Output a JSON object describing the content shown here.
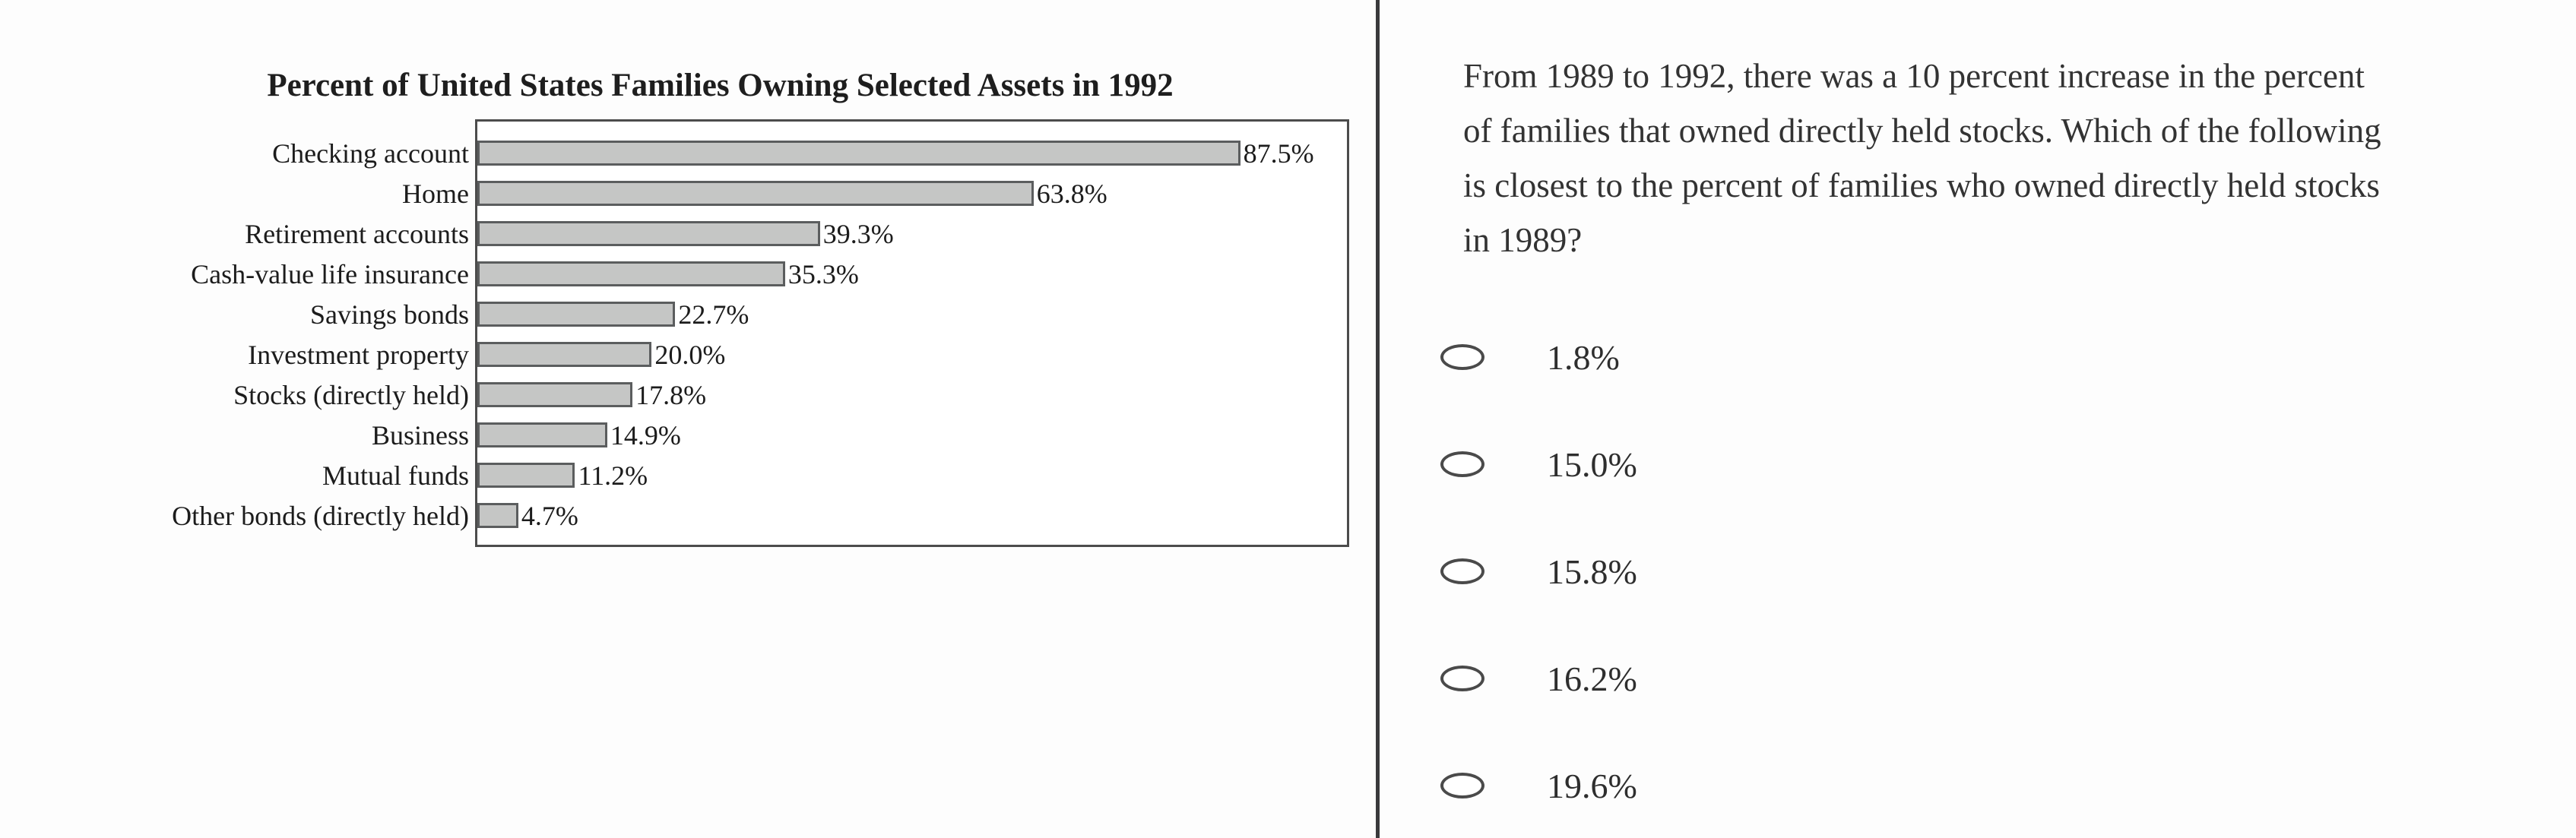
{
  "chart_data": {
    "type": "bar",
    "orientation": "horizontal",
    "title": "Percent of United States Families Owning Selected Assets in 1992",
    "categories": [
      "Checking account",
      "Home",
      "Retirement accounts",
      "Cash-value life insurance",
      "Savings bonds",
      "Investment property",
      "Stocks (directly held)",
      "Business",
      "Mutual funds",
      "Other bonds (directly held)"
    ],
    "values": [
      87.5,
      63.8,
      39.3,
      35.3,
      22.7,
      20.0,
      17.8,
      14.9,
      11.2,
      4.7
    ],
    "value_labels": [
      "87.5%",
      "63.8%",
      "39.3%",
      "35.3%",
      "22.7%",
      "20.0%",
      "17.8%",
      "14.9%",
      "11.2%",
      "4.7%"
    ],
    "xlabel": "",
    "ylabel": "",
    "xlim": [
      0,
      100
    ],
    "grid": false,
    "legend": false,
    "value_label_position": "right-of-bar",
    "bar_fill": "#c5c6c5",
    "bar_border": "#5b5d5e",
    "frame_color": "#4c4c4c"
  },
  "question": {
    "lines": [
      "From 1989 to 1992, there was a 10 percent increase in the percent",
      "of families that owned directly held stocks. Which of the following",
      "is closest to the percent of families who owned directly held stocks",
      "in 1989?"
    ],
    "text": "From 1989 to 1992, there was a 10 percent increase in the percent of families that owned directly held stocks. Which of the following is closest to the percent of families who owned directly held stocks in 1989?",
    "options": [
      {
        "label": "1.8%",
        "selected": false
      },
      {
        "label": "15.0%",
        "selected": false
      },
      {
        "label": "15.8%",
        "selected": false
      },
      {
        "label": "16.2%",
        "selected": false
      },
      {
        "label": "19.6%",
        "selected": false
      }
    ]
  },
  "divider_color": "#3a3a3c"
}
